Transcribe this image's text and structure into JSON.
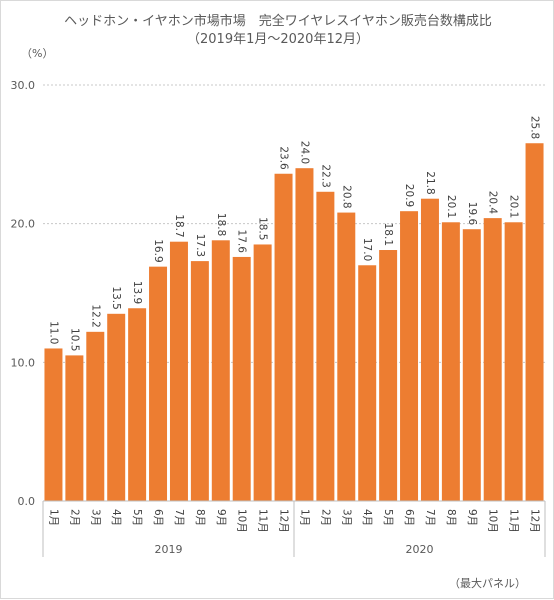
{
  "chart_data": {
    "type": "bar",
    "title": "ヘッドホン・イヤホン市場市場　完全ワイヤレスイヤホン販売台数構成比",
    "subtitle": "（2019年1月～2020年12月）",
    "unit_label": "（%）",
    "source_note": "（最大パネル）",
    "categories": [
      "1月",
      "2月",
      "3月",
      "4月",
      "5月",
      "6月",
      "7月",
      "8月",
      "9月",
      "10月",
      "11月",
      "12月",
      "1月",
      "2月",
      "3月",
      "4月",
      "5月",
      "6月",
      "7月",
      "8月",
      "9月",
      "10月",
      "11月",
      "12月"
    ],
    "groups": [
      {
        "label": "2019",
        "start": 0,
        "count": 12
      },
      {
        "label": "2020",
        "start": 12,
        "count": 12
      }
    ],
    "values": [
      11.0,
      10.5,
      12.2,
      13.5,
      13.9,
      16.9,
      18.7,
      17.3,
      18.8,
      17.6,
      18.5,
      23.6,
      24.0,
      22.3,
      20.8,
      17.0,
      18.1,
      20.9,
      21.8,
      20.1,
      19.6,
      20.4,
      20.1,
      25.8
    ],
    "value_labels": [
      "11.0",
      "10.5",
      "12.2",
      "13.5",
      "13.9",
      "16.9",
      "18.7",
      "17.3",
      "18.8",
      "17.6",
      "18.5",
      "23.6",
      "24.0",
      "22.3",
      "20.8",
      "17.0",
      "18.1",
      "20.9",
      "21.8",
      "20.1",
      "19.6",
      "20.4",
      "20.1",
      "25.8"
    ],
    "yticks": [
      "0.0",
      "10.0",
      "20.0",
      "30.0"
    ],
    "ylim": [
      0,
      30
    ],
    "grid": true,
    "bar_color": "#ed7d31"
  }
}
